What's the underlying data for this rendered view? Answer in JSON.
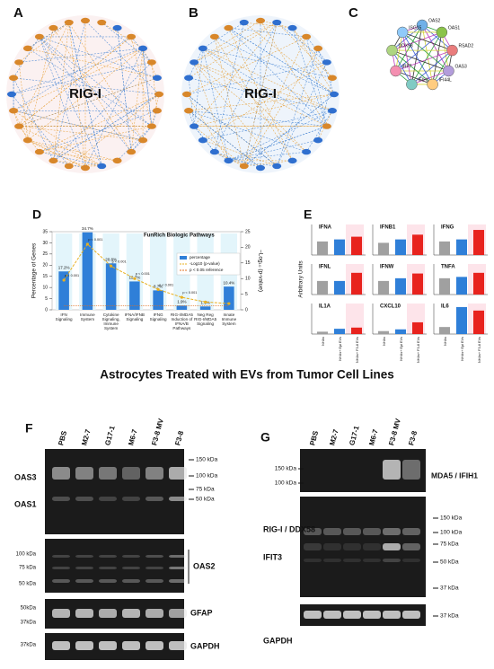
{
  "network_panels": [
    {
      "label": "A",
      "center_label": "RIG-I"
    },
    {
      "label": "B",
      "center_label": "RIG-I"
    },
    {
      "label": "C",
      "nodes": [
        "OAS2",
        "OAS1",
        "RSAD2",
        "OAS3",
        "IFI44L",
        "IFIH1",
        "IRF7",
        "DDX58",
        "ISG15"
      ]
    }
  ],
  "chart_data": [
    {
      "type": "bar",
      "panel_label": "D",
      "title": "FunRich Biologic Pathways",
      "categories": [
        "IFN Signaling",
        "Immune System",
        "Cytokine Signaling, Immune System",
        "IFNA/IFNB Signaling",
        "IFNG Signaling",
        "RIG-I/MDA5 Induction of IFNA/B Pathways",
        "Neg Reg RIG-I/MDA5 Signaling",
        "Innate Immune System"
      ],
      "series": [
        {
          "name": "percentage",
          "color": "#2f7fd8",
          "values": [
            17.2,
            34.7,
            20.8,
            12.7,
            8.7,
            1.9,
            1.5,
            10.4
          ],
          "value_labels": [
            "17.2%",
            "34.7%",
            "20.8%",
            "12.7%",
            "8.7%",
            "1.9%",
            "1.5%",
            "10.4%"
          ]
        },
        {
          "name": "-Log10 (p-value)",
          "type": "line",
          "axis": "y2",
          "color": "#e8b020",
          "values": [
            9.5,
            21,
            14,
            10,
            6.5,
            4,
            2.5,
            2
          ]
        },
        {
          "name": "p < 0.05 reference",
          "type": "line",
          "axis": "y2",
          "color": "#e07020",
          "values": [
            1.3,
            1.3,
            1.3,
            1.3,
            1.3,
            1.3,
            1.3,
            1.3
          ]
        }
      ],
      "ylabel": "Percentage of Genes",
      "y2label": "−Log₁₀ (p-value)",
      "ylim": [
        0,
        35
      ],
      "yticks": [
        0,
        5,
        10,
        15,
        20,
        25,
        30,
        35
      ],
      "y2lim": [
        0,
        25
      ],
      "y2ticks": [
        0,
        5,
        10,
        15,
        20,
        25
      ],
      "annotations": [
        "p < 0.001",
        "p < 0.001",
        "p < 0.001",
        "p < 0.001",
        "p < 0.001",
        "p < 0.001"
      ]
    },
    {
      "type": "minibar",
      "panel_label": "E",
      "title": "IFNA",
      "categories": [
        null,
        null,
        null
      ],
      "values": [
        20,
        23,
        27
      ],
      "colors": [
        "#a0a0a0",
        "#2f7fd8",
        "#e8231e"
      ],
      "ylim": [
        0,
        45
      ]
    },
    {
      "type": "minibar",
      "title": "IFNB1",
      "categories": [
        null,
        null,
        null
      ],
      "values": [
        18,
        23,
        30
      ],
      "colors": [
        "#a0a0a0",
        "#2f7fd8",
        "#e8231e"
      ],
      "ylim": [
        0,
        45
      ]
    },
    {
      "type": "minibar",
      "title": "IFNG",
      "categories": [
        null,
        null,
        null
      ],
      "values": [
        20,
        23,
        37
      ],
      "colors": [
        "#a0a0a0",
        "#2f7fd8",
        "#e8231e"
      ],
      "ylim": [
        0,
        45
      ]
    },
    {
      "type": "minibar",
      "title": "IFNL",
      "ylabel": "Arbitrary Units",
      "categories": [
        null,
        null,
        null
      ],
      "values": [
        20,
        20,
        32
      ],
      "colors": [
        "#a0a0a0",
        "#2f7fd8",
        "#e8231e"
      ],
      "ylim": [
        0,
        45
      ]
    },
    {
      "type": "minibar",
      "title": "IFNW",
      "categories": [
        null,
        null,
        null
      ],
      "values": [
        20,
        24,
        31
      ],
      "colors": [
        "#a0a0a0",
        "#2f7fd8",
        "#e8231e"
      ],
      "ylim": [
        0,
        45
      ]
    },
    {
      "type": "minibar",
      "title": "TNFA",
      "categories": [
        null,
        null,
        null
      ],
      "values": [
        24,
        26,
        32
      ],
      "colors": [
        "#a0a0a0",
        "#2f7fd8",
        "#e8231e"
      ],
      "ylim": [
        0,
        45
      ]
    },
    {
      "type": "minibar",
      "title": "IL1A",
      "categories": [
        "NHAs",
        "NHAs+ Epi EVs",
        "NHAs+ F3-8 EVs"
      ],
      "values": [
        20,
        45,
        55
      ],
      "colors": [
        "#a0a0a0",
        "#2f7fd8",
        "#e8231e"
      ],
      "ylim": [
        0,
        260
      ]
    },
    {
      "type": "minibar",
      "title": "CXCL10",
      "categories": [
        "NHAs",
        "NHAs+ Epi EVs",
        "NHAs+ F3-8 EVs"
      ],
      "values": [
        25,
        40,
        100
      ],
      "colors": [
        "#a0a0a0",
        "#2f7fd8",
        "#e8231e"
      ],
      "ylim": [
        0,
        260
      ]
    },
    {
      "type": "minibar",
      "title": "IL6",
      "categories": [
        "NHAs",
        "NHAs+ Epi EVs",
        "NHAs+ F3-8 EVs"
      ],
      "values": [
        60,
        230,
        200
      ],
      "colors": [
        "#a0a0a0",
        "#2f7fd8",
        "#e8231e"
      ],
      "ylim": [
        0,
        260
      ]
    }
  ],
  "figure_title": "Astrocytes Treated with EVs from Tumor Cell Lines",
  "blots": [
    {
      "panel_label": "F",
      "lanes": [
        "PBS",
        "M2-7",
        "G17-1",
        "M6-7",
        "F3-8 MV",
        "F3-8"
      ],
      "proteins": [
        "OAS3",
        "OAS1",
        "OAS2",
        "GFAP",
        "GAPDH"
      ],
      "markers_right": [
        "150 kDa",
        "100 kDa",
        "75 kDa",
        "50 kDa"
      ],
      "markers_left": [
        "100 kDa",
        "75 kDa",
        "50 kDa",
        "50kDa",
        "37kDa",
        "37kDa"
      ]
    },
    {
      "panel_label": "G",
      "lanes": [
        "PBS",
        "M2-7",
        "G17-1",
        "M6-7",
        "F3-8 MV",
        "F3-8"
      ],
      "proteins": [
        "MDA5 / IFIH1",
        "RIG-I / DDX58",
        "IFIT3",
        "GAPDH"
      ],
      "markers_left": [
        "150 kDa",
        "100 kDa"
      ],
      "markers_right": [
        "150 kDa",
        "100 kDa",
        "75 kDa",
        "50 kDa",
        "37 kDa",
        "37 kDa"
      ]
    }
  ]
}
